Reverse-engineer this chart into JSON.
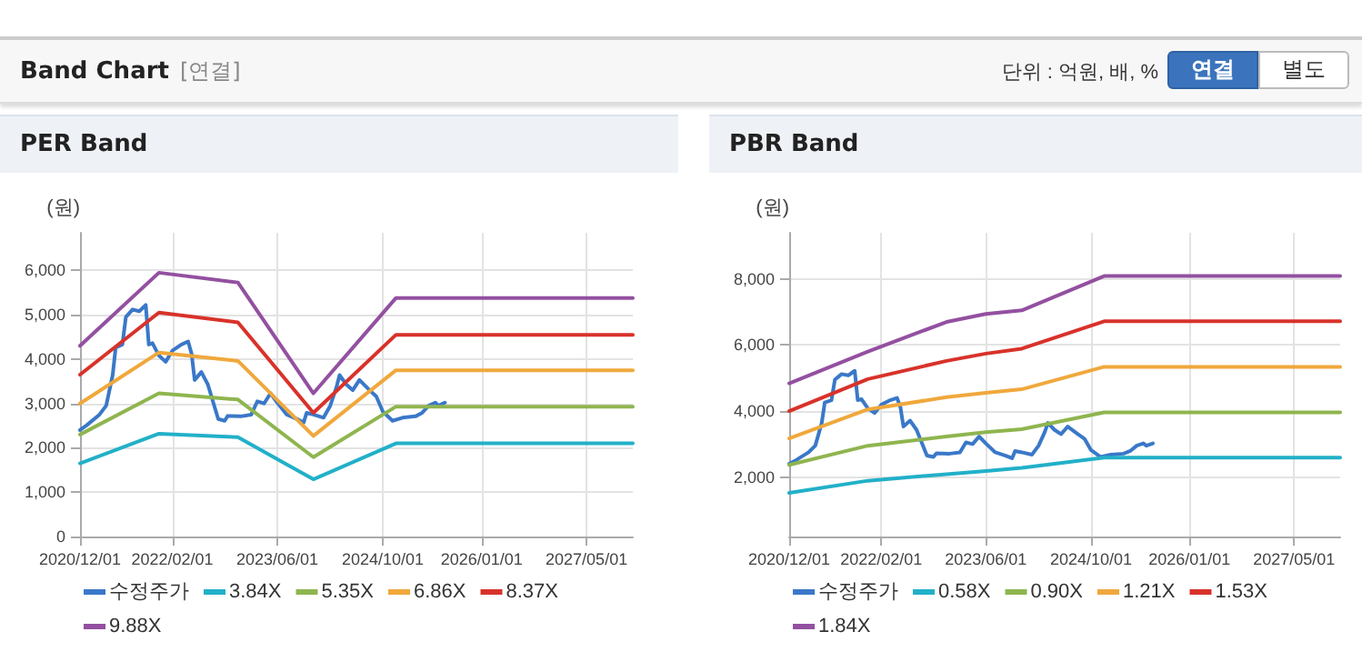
{
  "chart_data": [
    {
      "type": "other",
      "title": "Band Chart",
      "annotations": [
        "[연결]",
        "단위 : 억원, 배, %",
        "연결",
        "별도"
      ]
    },
    {
      "type": "line",
      "title": "PER Band",
      "ylabel": "(원)",
      "xlim": [
        "2020-12-01",
        "2027-12-01"
      ],
      "xticks": [
        {
          "value": "2020-12-01",
          "label": "2020/12/01"
        },
        {
          "value": "2022-02-01",
          "label": "2022/02/01"
        },
        {
          "value": "2023-06-01",
          "label": "2023/06/01"
        },
        {
          "value": "2024-10-01",
          "label": "2024/10/01"
        },
        {
          "value": "2026-01-01",
          "label": "2026/01/01"
        },
        {
          "value": "2027-05-01",
          "label": "2027/05/01"
        }
      ],
      "ylim": [
        0,
        6850
      ],
      "yticks": [
        0,
        {
          "value": 1000,
          "label": "1,000"
        },
        {
          "value": 2000,
          "label": "2,000"
        },
        {
          "value": 3000,
          "label": "3,000"
        },
        {
          "value": 4000,
          "label": "4,000"
        },
        {
          "value": 5000,
          "label": "5,000"
        },
        {
          "value": 6000,
          "label": "6,000"
        }
      ],
      "grid": true,
      "legend": "bottom",
      "marker": "none",
      "line_style": "solid",
      "series": [
        {
          "name": "수정주가",
          "color": "#3a78c8",
          "x": [
            "2020-12-01",
            "2021-01-01",
            "2021-03-01",
            "2021-04-01",
            "2021-05-01",
            "2021-05-15",
            "2021-06-15",
            "2021-07-01",
            "2021-08-01",
            "2021-09-01",
            "2021-10-01",
            "2021-10-15",
            "2021-11-01",
            "2021-12-01",
            "2022-01-01",
            "2022-02-01",
            "2022-03-15",
            "2022-04-15",
            "2022-05-01",
            "2022-05-15",
            "2022-06-15",
            "2022-07-15",
            "2022-09-01",
            "2022-10-01",
            "2022-10-15",
            "2022-12-15",
            "2023-02-01",
            "2023-03-01",
            "2023-04-01",
            "2023-05-01",
            "2023-06-01",
            "2023-07-15",
            "2023-09-01",
            "2023-10-01",
            "2023-10-15",
            "2023-11-15",
            "2024-01-01",
            "2024-02-01",
            "2024-03-01",
            "2024-03-15",
            "2024-04-15",
            "2024-05-15",
            "2024-06-15",
            "2024-08-01",
            "2024-09-01",
            "2024-10-01",
            "2024-11-15",
            "2025-01-01",
            "2025-03-01",
            "2025-04-01",
            "2025-05-01",
            "2025-06-01",
            "2025-06-15",
            "2025-07-15"
          ],
          "values": [
            2400,
            2510,
            2750,
            2950,
            3640,
            4260,
            4330,
            4950,
            5120,
            5080,
            5220,
            4330,
            4360,
            4080,
            3940,
            4190,
            4330,
            4400,
            4120,
            3530,
            3710,
            3430,
            2650,
            2610,
            2720,
            2710,
            2750,
            3050,
            3000,
            3230,
            3020,
            2750,
            2650,
            2570,
            2790,
            2750,
            2680,
            2950,
            3370,
            3640,
            3430,
            3300,
            3530,
            3300,
            3160,
            2820,
            2610,
            2680,
            2710,
            2790,
            2950,
            3020,
            2950,
            3020
          ]
        },
        {
          "name": "3.84X",
          "color": "#22b0c8",
          "x": [
            "2020-12-01",
            "2021-12-01",
            "2022-12-01",
            "2023-11-15",
            "2024-12-01",
            "2027-12-01"
          ],
          "values": [
            1650,
            2320,
            2240,
            1290,
            2100,
            2100
          ]
        },
        {
          "name": "5.35X",
          "color": "#8fb54f",
          "x": [
            "2020-12-01",
            "2021-12-01",
            "2022-12-01",
            "2023-11-15",
            "2024-12-01",
            "2027-12-01"
          ],
          "values": [
            2300,
            3230,
            3090,
            1790,
            2930,
            2930
          ]
        },
        {
          "name": "6.86X",
          "color": "#f0a83c",
          "x": [
            "2020-12-01",
            "2021-12-01",
            "2022-12-01",
            "2023-11-15",
            "2024-12-01",
            "2027-12-01"
          ],
          "values": [
            3000,
            4150,
            3960,
            2270,
            3750,
            3750
          ]
        },
        {
          "name": "8.37X",
          "color": "#d8322a",
          "x": [
            "2020-12-01",
            "2021-12-01",
            "2022-12-01",
            "2023-11-15",
            "2024-12-01",
            "2027-12-01"
          ],
          "values": [
            3650,
            5050,
            4830,
            2790,
            4550,
            4550
          ]
        },
        {
          "name": "9.88X",
          "color": "#9350a0",
          "x": [
            "2020-12-01",
            "2021-12-01",
            "2022-12-01",
            "2023-11-15",
            "2024-12-01",
            "2027-12-01"
          ],
          "values": [
            4300,
            5950,
            5730,
            3230,
            5380,
            5380
          ]
        }
      ]
    },
    {
      "type": "line",
      "title": "PBR Band",
      "ylabel": "(원)",
      "xlim": [
        "2020-12-01",
        "2027-12-01"
      ],
      "xticks": [
        {
          "value": "2020-12-01",
          "label": "2020/12/01"
        },
        {
          "value": "2022-02-01",
          "label": "2022/02/01"
        },
        {
          "value": "2023-06-01",
          "label": "2023/06/01"
        },
        {
          "value": "2024-10-01",
          "label": "2024/10/01"
        },
        {
          "value": "2026-01-01",
          "label": "2026/01/01"
        },
        {
          "value": "2027-05-01",
          "label": "2027/05/01"
        }
      ],
      "ylim": [
        200,
        9400
      ],
      "yticks": [
        {
          "value": 2000,
          "label": "2,000"
        },
        {
          "value": 4000,
          "label": "4,000"
        },
        {
          "value": 6000,
          "label": "6,000"
        },
        {
          "value": 8000,
          "label": "8,000"
        }
      ],
      "grid": true,
      "legend": "bottom",
      "marker": "none",
      "line_style": "solid",
      "series": [
        {
          "name": "수정주가",
          "color": "#3a78c8",
          "x": [
            "2020-12-01",
            "2021-01-01",
            "2021-03-01",
            "2021-04-01",
            "2021-05-01",
            "2021-05-15",
            "2021-06-15",
            "2021-07-01",
            "2021-08-01",
            "2021-09-01",
            "2021-10-01",
            "2021-10-15",
            "2021-11-01",
            "2021-12-01",
            "2022-01-01",
            "2022-02-01",
            "2022-03-15",
            "2022-04-15",
            "2022-05-01",
            "2022-05-15",
            "2022-06-15",
            "2022-07-15",
            "2022-09-01",
            "2022-10-01",
            "2022-10-15",
            "2022-12-15",
            "2023-02-01",
            "2023-03-01",
            "2023-04-01",
            "2023-05-01",
            "2023-06-01",
            "2023-07-15",
            "2023-09-01",
            "2023-10-01",
            "2023-10-15",
            "2023-11-15",
            "2024-01-01",
            "2024-02-01",
            "2024-03-01",
            "2024-03-15",
            "2024-04-15",
            "2024-05-15",
            "2024-06-15",
            "2024-08-01",
            "2024-09-01",
            "2024-10-01",
            "2024-11-15",
            "2025-01-01",
            "2025-03-01",
            "2025-04-01",
            "2025-05-01",
            "2025-06-01",
            "2025-06-15",
            "2025-07-15"
          ],
          "values": [
            2400,
            2510,
            2750,
            2950,
            3640,
            4260,
            4330,
            4950,
            5120,
            5080,
            5220,
            4330,
            4360,
            4080,
            3940,
            4190,
            4330,
            4400,
            4120,
            3530,
            3710,
            3430,
            2650,
            2610,
            2720,
            2710,
            2750,
            3050,
            3000,
            3230,
            3020,
            2750,
            2650,
            2570,
            2790,
            2750,
            2680,
            2950,
            3370,
            3640,
            3430,
            3300,
            3530,
            3300,
            3160,
            2820,
            2610,
            2680,
            2710,
            2790,
            2950,
            3020,
            2950,
            3020
          ]
        },
        {
          "name": "0.58X",
          "color": "#22b0c8",
          "x": [
            "2020-12-01",
            "2021-12-01",
            "2022-12-01",
            "2023-06-01",
            "2023-11-15",
            "2024-12-01",
            "2027-12-01"
          ],
          "values": [
            1520,
            1890,
            2090,
            2180,
            2280,
            2590,
            2590
          ]
        },
        {
          "name": "0.90X",
          "color": "#8fb54f",
          "x": [
            "2020-12-01",
            "2021-12-01",
            "2022-12-01",
            "2023-06-01",
            "2023-11-15",
            "2024-12-01",
            "2027-12-01"
          ],
          "values": [
            2370,
            2950,
            3230,
            3360,
            3450,
            3960,
            3960
          ]
        },
        {
          "name": "1.21X",
          "color": "#f0a83c",
          "x": [
            "2020-12-01",
            "2021-12-01",
            "2022-12-01",
            "2023-06-01",
            "2023-11-15",
            "2024-12-01",
            "2027-12-01"
          ],
          "values": [
            3170,
            4050,
            4420,
            4550,
            4660,
            5340,
            5340
          ]
        },
        {
          "name": "1.53X",
          "color": "#d8322a",
          "x": [
            "2020-12-01",
            "2021-12-01",
            "2022-12-01",
            "2023-06-01",
            "2023-11-15",
            "2024-12-01",
            "2027-12-01"
          ],
          "values": [
            4000,
            4970,
            5520,
            5740,
            5890,
            6720,
            6720
          ]
        },
        {
          "name": "1.84X",
          "color": "#9350a0",
          "x": [
            "2020-12-01",
            "2021-12-01",
            "2022-12-01",
            "2023-06-01",
            "2023-11-15",
            "2024-12-01",
            "2027-12-01"
          ],
          "values": [
            4840,
            5800,
            6700,
            6940,
            7050,
            8090,
            8090
          ]
        }
      ]
    }
  ]
}
